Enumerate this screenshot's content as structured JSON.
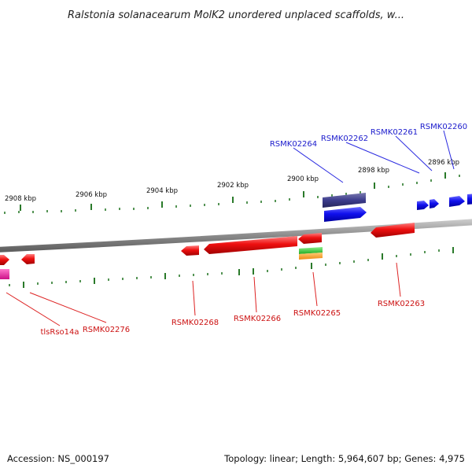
{
  "title": "Ralstonia solanacearum MolK2 unordered unplaced scaffolds, w...",
  "scale_labels": [
    "2908 kbp",
    "2906 kbp",
    "2904 kbp",
    "2902 kbp",
    "2900 kbp",
    "2898 kbp",
    "2896 kbp"
  ],
  "genes_top": [
    "RSMK02264",
    "RSMK02262",
    "RSMK02261",
    "RSMK02260"
  ],
  "genes_bottom": [
    "tlsRso14a",
    "RSMK02276",
    "RSMK02268",
    "RSMK02266",
    "RSMK02265",
    "RSMK02263"
  ],
  "footer": {
    "accession": "Accession: NS_000197",
    "summary": "Topology: linear; Length: 5,964,607 bp; Genes: 4,975"
  },
  "colors": {
    "forward_gene": "#1010ee",
    "reverse_gene": "#ee1010",
    "rna": "#3c3c8c",
    "misc_green": "#33bb33",
    "misc_orange": "#ff9922",
    "misc_magenta": "#dd2299",
    "ticks": "#2a7a2a",
    "backbone": "#8a8a8a"
  }
}
